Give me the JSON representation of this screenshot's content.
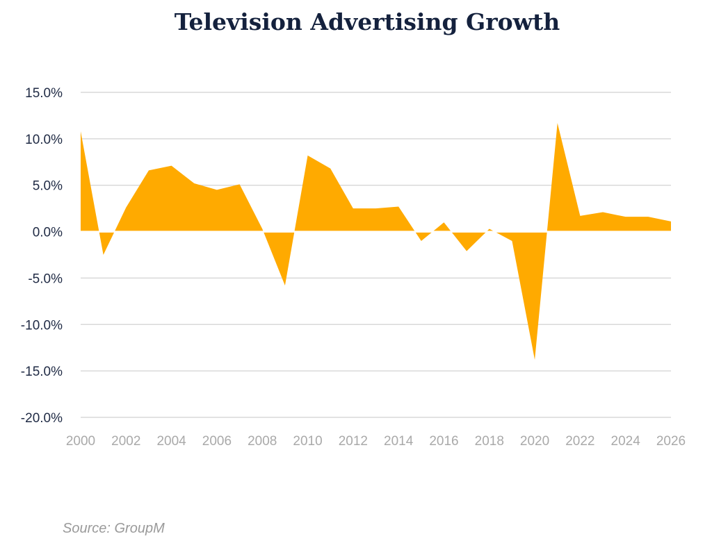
{
  "chart_data": {
    "type": "area",
    "title": "Television Advertising Growth",
    "xlabel": "",
    "ylabel": "",
    "x": [
      2000,
      2001,
      2002,
      2003,
      2004,
      2005,
      2006,
      2007,
      2008,
      2009,
      2010,
      2011,
      2012,
      2013,
      2014,
      2015,
      2016,
      2017,
      2018,
      2019,
      2020,
      2021,
      2022,
      2023,
      2024,
      2025,
      2026
    ],
    "values": [
      10.8,
      -2.5,
      2.6,
      6.6,
      7.1,
      5.2,
      4.5,
      5.1,
      0.3,
      -5.8,
      8.2,
      6.8,
      2.5,
      2.5,
      2.7,
      -1.0,
      1.0,
      -2.1,
      0.3,
      -1.0,
      -13.8,
      11.7,
      1.7,
      2.1,
      1.6,
      1.6,
      1.1
    ],
    "ylim": [
      -20,
      15
    ],
    "yticks": [
      15,
      10,
      5,
      0,
      -5,
      -10,
      -15,
      -20
    ],
    "ytick_labels": [
      "15.0%",
      "10.0%",
      "5.0%",
      "0.0%",
      "-5.0%",
      "-10.0%",
      "-15.0%",
      "-20.0%"
    ],
    "xticks": [
      2000,
      2002,
      2004,
      2006,
      2008,
      2010,
      2012,
      2014,
      2016,
      2018,
      2020,
      2022,
      2024,
      2026
    ],
    "xtick_labels": [
      "2000",
      "2002",
      "2004",
      "2006",
      "2008",
      "2010",
      "2012",
      "2014",
      "2016",
      "2018",
      "2020",
      "2022",
      "2024",
      "2026"
    ],
    "grid": true,
    "legend": "none",
    "fill_color": "#ffaa00",
    "source": "Source: GroupM"
  },
  "colors": {
    "title": "#14213d",
    "grid": "#d9d9d9",
    "zero_line": "#ffffff"
  }
}
